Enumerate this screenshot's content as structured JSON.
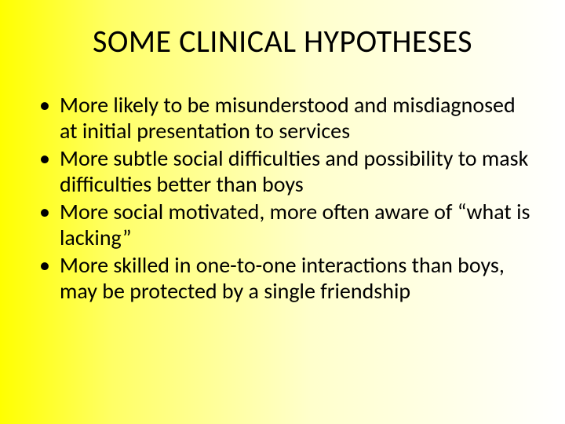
{
  "slide": {
    "background_gradient": {
      "direction": "to right",
      "stops": [
        "#ffff00",
        "#ffff66",
        "#ffffcc",
        "#ffffff"
      ]
    },
    "title": {
      "text": "SOME CLINICAL HYPOTHESES",
      "font_size": 40,
      "font_weight": 400,
      "color": "#000000",
      "align": "center"
    },
    "bullets": {
      "font_size": 28,
      "line_height": 1.18,
      "color": "#000000",
      "marker": "•",
      "items": [
        "More likely to be misunderstood and misdiagnosed at initial presentation to services",
        "More subtle social difficulties and possibility to mask difficulties better than boys",
        "More social motivated, more often aware of “what is lacking”",
        "More skilled in one-to-one interactions than boys, may be protected by a single friendship"
      ]
    }
  }
}
